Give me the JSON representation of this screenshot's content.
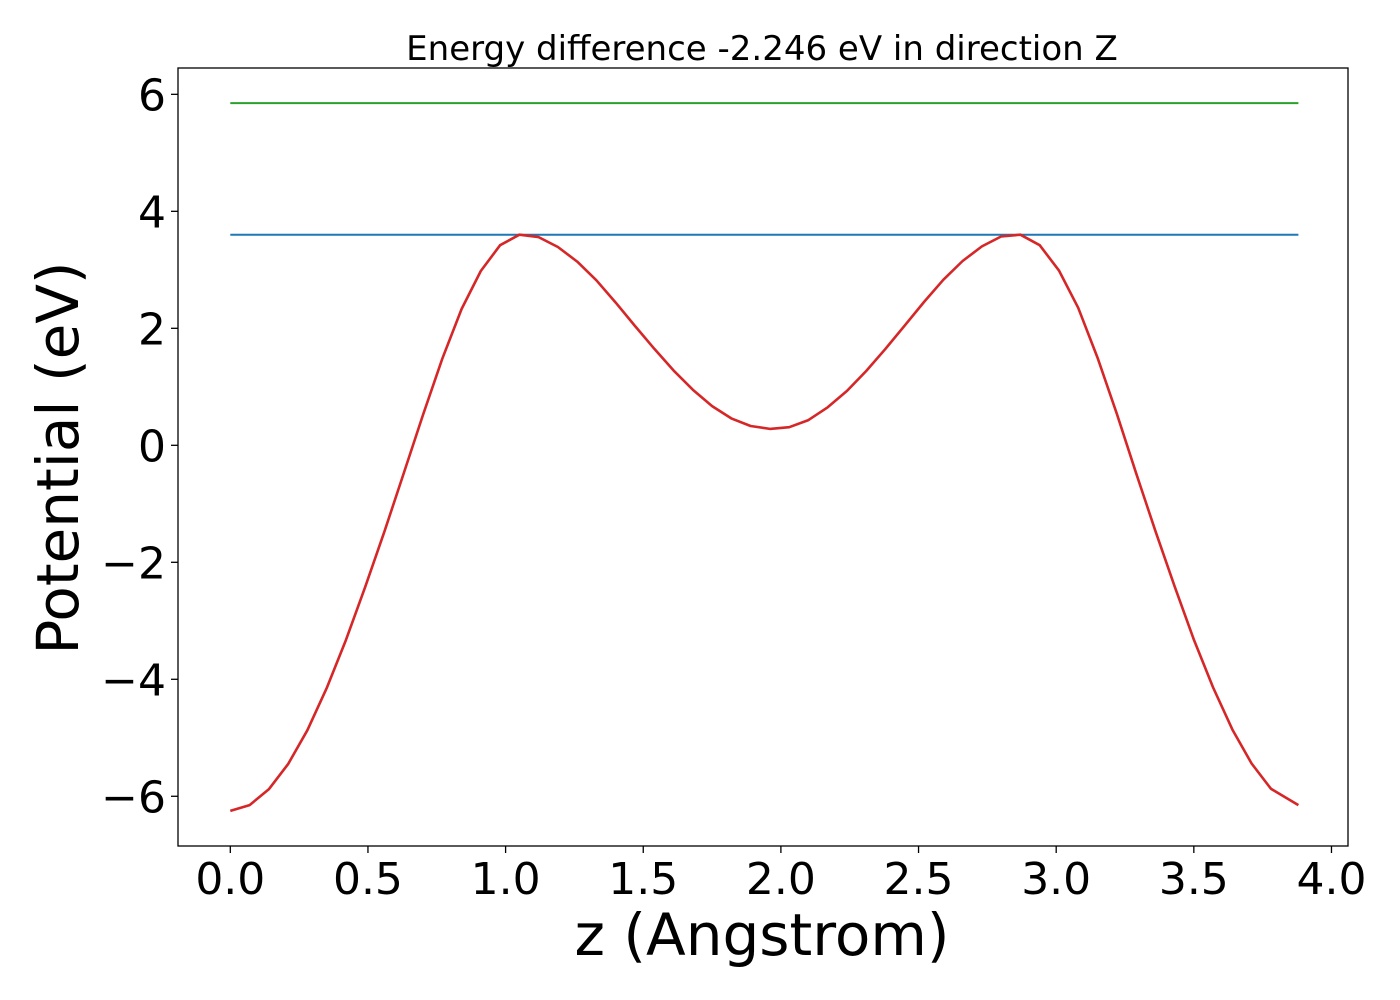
{
  "chart_data": {
    "type": "line",
    "title": "Energy difference -2.246 eV in direction Z",
    "xlabel": "z (Angstrom)",
    "ylabel": "Potential (eV)",
    "xlim": [
      -0.19,
      4.06
    ],
    "ylim": [
      -6.85,
      6.45
    ],
    "xticks": [
      0.0,
      0.5,
      1.0,
      1.5,
      2.0,
      2.5,
      3.0,
      3.5,
      4.0
    ],
    "xtick_labels": [
      "0.0",
      "0.5",
      "1.0",
      "1.5",
      "2.0",
      "2.5",
      "3.0",
      "3.5",
      "4.0"
    ],
    "yticks": [
      -6,
      -4,
      -2,
      0,
      2,
      4,
      6
    ],
    "ytick_labels": [
      "−6",
      "−4",
      "−2",
      "0",
      "2",
      "4",
      "6"
    ],
    "grid": false,
    "series": [
      {
        "color": "#2ca02c",
        "x": [
          0.0,
          3.88
        ],
        "y": [
          5.85,
          5.85
        ]
      },
      {
        "color": "#1f77b4",
        "x": [
          0.0,
          3.88
        ],
        "y": [
          3.6,
          3.6
        ]
      },
      {
        "color": "#d62728",
        "x": [
          0.0,
          0.07,
          0.14,
          0.21,
          0.28,
          0.35,
          0.42,
          0.49,
          0.56,
          0.63,
          0.7,
          0.77,
          0.84,
          0.91,
          0.98,
          1.05,
          1.12,
          1.19,
          1.26,
          1.33,
          1.4,
          1.47,
          1.54,
          1.61,
          1.68,
          1.75,
          1.82,
          1.89,
          1.96,
          2.03,
          2.1,
          2.17,
          2.24,
          2.31,
          2.38,
          2.45,
          2.52,
          2.59,
          2.66,
          2.73,
          2.8,
          2.87,
          2.94,
          3.01,
          3.08,
          3.15,
          3.22,
          3.29,
          3.36,
          3.43,
          3.5,
          3.57,
          3.64,
          3.71,
          3.78,
          3.88
        ],
        "y": [
          -6.25,
          -6.15,
          -5.88,
          -5.45,
          -4.87,
          -4.15,
          -3.33,
          -2.42,
          -1.47,
          -0.48,
          0.52,
          1.48,
          2.33,
          2.98,
          3.42,
          3.6,
          3.56,
          3.39,
          3.14,
          2.82,
          2.44,
          2.04,
          1.65,
          1.28,
          0.95,
          0.67,
          0.46,
          0.33,
          0.28,
          0.31,
          0.43,
          0.65,
          0.93,
          1.27,
          1.65,
          2.05,
          2.45,
          2.83,
          3.15,
          3.4,
          3.57,
          3.6,
          3.42,
          2.99,
          2.35,
          1.5,
          0.54,
          -0.47,
          -1.46,
          -2.41,
          -3.32,
          -4.14,
          -4.86,
          -5.44,
          -5.87,
          -6.15
        ]
      }
    ]
  }
}
